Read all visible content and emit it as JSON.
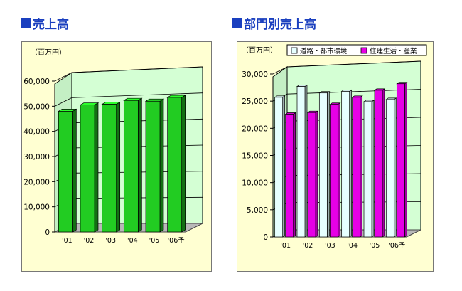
{
  "headings": {
    "left": "売上高",
    "right": "部門別売上高"
  },
  "colors": {
    "heading": "#1a3fbf",
    "panel_bg": "#ffffd2",
    "wall": "#d4ffd4",
    "floor": "#b8b8b8",
    "series_green": "#22cc22",
    "series_lightblue": "#e6ffff",
    "series_magenta": "#e600e6"
  },
  "chart_data": [
    {
      "type": "bar",
      "unit_label": "（百万円）",
      "categories": [
        "'01",
        "'02",
        "'03",
        "'04",
        "'05",
        "'06予"
      ],
      "yticks": [
        "0",
        "10,000",
        "20,000",
        "30,000",
        "40,000",
        "50,000",
        "60,000"
      ],
      "ylim": [
        0,
        60000
      ],
      "grid": true,
      "series": [
        {
          "values": [
            48000,
            50500,
            50800,
            52300,
            52000,
            53500
          ]
        }
      ]
    },
    {
      "type": "bar",
      "unit_label": "（百万円）",
      "categories": [
        "'01",
        "'02",
        "'03",
        "'04",
        "'05",
        "'06予"
      ],
      "yticks": [
        "0",
        "5,000",
        "10,000",
        "15,000",
        "20,000",
        "25,000",
        "30,000"
      ],
      "ylim": [
        0,
        30000
      ],
      "grid": true,
      "legend_position": "top",
      "series": [
        {
          "name": "道路・都市環境",
          "values": [
            25700,
            27700,
            26500,
            26800,
            24900,
            25300
          ]
        },
        {
          "name": "住建生活・産業",
          "values": [
            22600,
            22900,
            24400,
            25700,
            27000,
            28200
          ]
        }
      ]
    }
  ]
}
